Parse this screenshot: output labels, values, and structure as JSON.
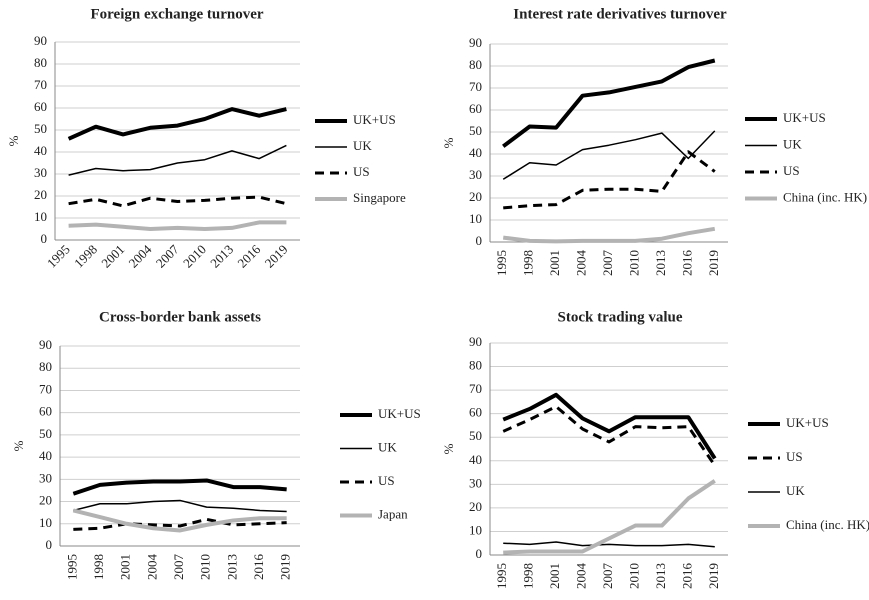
{
  "chart_data": [
    {
      "type": "line",
      "title": "Foreign exchange turnover",
      "y_label": "%",
      "categories": [
        "1995",
        "1998",
        "2001",
        "2004",
        "2007",
        "2010",
        "2013",
        "2016",
        "2019"
      ],
      "ylim": [
        0,
        90
      ],
      "yticks": [
        0,
        10,
        20,
        30,
        40,
        50,
        60,
        70,
        80,
        90
      ],
      "grid": true,
      "series": [
        {
          "name": "UK+US",
          "color": "#000000",
          "style": "bold",
          "values": [
            46,
            51.5,
            48,
            51,
            52,
            55,
            59.5,
            56.5,
            59.5
          ]
        },
        {
          "name": "UK",
          "color": "#000000",
          "style": "thin",
          "values": [
            29.5,
            32.5,
            31.5,
            32,
            35,
            36.5,
            40.5,
            37,
            43
          ]
        },
        {
          "name": "US",
          "color": "#000000",
          "style": "dashed",
          "values": [
            16.5,
            18.5,
            15.5,
            19,
            17.5,
            18,
            19,
            19.5,
            16.5
          ]
        },
        {
          "name": "Singapore",
          "color": "#b3b3b3",
          "style": "bold",
          "values": [
            6.5,
            7,
            6,
            5,
            5.5,
            5,
            5.5,
            8,
            8
          ]
        }
      ]
    },
    {
      "type": "line",
      "title": "Interest rate derivatives turnover",
      "y_label": "%",
      "categories": [
        "1995",
        "1998",
        "2001",
        "2004",
        "2007",
        "2010",
        "2013",
        "2016",
        "2019"
      ],
      "ylim": [
        0,
        90
      ],
      "yticks": [
        0,
        10,
        20,
        30,
        40,
        50,
        60,
        70,
        80,
        90
      ],
      "grid": true,
      "series": [
        {
          "name": "UK+US",
          "color": "#000000",
          "style": "bold",
          "values": [
            43.5,
            52.5,
            52,
            66.5,
            68,
            70.5,
            73,
            79.5,
            82.5
          ]
        },
        {
          "name": "UK",
          "color": "#000000",
          "style": "thin",
          "values": [
            28.5,
            36,
            35,
            42,
            44,
            46.5,
            49.5,
            38,
            50.5
          ]
        },
        {
          "name": "US",
          "color": "#000000",
          "style": "dashed",
          "values": [
            15.5,
            16.5,
            17,
            23.5,
            24,
            24,
            23,
            41,
            32
          ]
        },
        {
          "name": "China (inc. HK)",
          "color": "#b3b3b3",
          "style": "bold",
          "values": [
            2,
            0.5,
            0.3,
            0.5,
            0.5,
            0.5,
            1.5,
            4,
            6
          ]
        }
      ]
    },
    {
      "type": "line",
      "title": "Cross-border bank assets",
      "y_label": "%",
      "categories": [
        "1995",
        "1998",
        "2001",
        "2004",
        "2007",
        "2010",
        "2013",
        "2016",
        "2019"
      ],
      "ylim": [
        0,
        90
      ],
      "yticks": [
        0,
        10,
        20,
        30,
        40,
        50,
        60,
        70,
        80,
        90
      ],
      "grid": true,
      "series": [
        {
          "name": "UK+US",
          "color": "#000000",
          "style": "bold",
          "values": [
            23.5,
            27.5,
            28.5,
            29,
            29,
            29.5,
            26.5,
            26.5,
            25.5
          ]
        },
        {
          "name": "UK",
          "color": "#000000",
          "style": "thin",
          "values": [
            16,
            19,
            19,
            20,
            20.5,
            17.5,
            17,
            16,
            15.5
          ]
        },
        {
          "name": "US",
          "color": "#000000",
          "style": "dashed",
          "values": [
            7.5,
            8,
            10,
            9.5,
            9,
            12,
            9.5,
            10,
            10.5
          ]
        },
        {
          "name": "Japan",
          "color": "#b3b3b3",
          "style": "bold",
          "values": [
            16,
            13,
            10,
            8,
            7,
            9.5,
            11.5,
            12.5,
            12.5
          ]
        }
      ]
    },
    {
      "type": "line",
      "title": "Stock trading value",
      "y_label": "%",
      "categories": [
        "1995",
        "1998",
        "2001",
        "2004",
        "2007",
        "2010",
        "2013",
        "2016",
        "2019"
      ],
      "ylim": [
        0,
        90
      ],
      "yticks": [
        0,
        10,
        20,
        30,
        40,
        50,
        60,
        70,
        80,
        90
      ],
      "grid": true,
      "series": [
        {
          "name": "UK+US",
          "color": "#000000",
          "style": "bold",
          "values": [
            57.5,
            62,
            68,
            58,
            52.5,
            58.5,
            58.5,
            58.5,
            41
          ]
        },
        {
          "name": "US",
          "color": "#000000",
          "style": "dashed",
          "values": [
            52.5,
            57.5,
            63,
            53.5,
            48,
            54.5,
            54,
            54.5,
            38
          ]
        },
        {
          "name": "UK",
          "color": "#000000",
          "style": "thin",
          "values": [
            5,
            4.5,
            5.5,
            4,
            4.5,
            4,
            4,
            4.5,
            3.5
          ]
        },
        {
          "name": "China (inc. HK)",
          "color": "#b3b3b3",
          "style": "bold",
          "values": [
            1,
            1.5,
            1.5,
            1.5,
            7,
            12.5,
            12.5,
            24,
            31.5
          ]
        }
      ]
    }
  ]
}
